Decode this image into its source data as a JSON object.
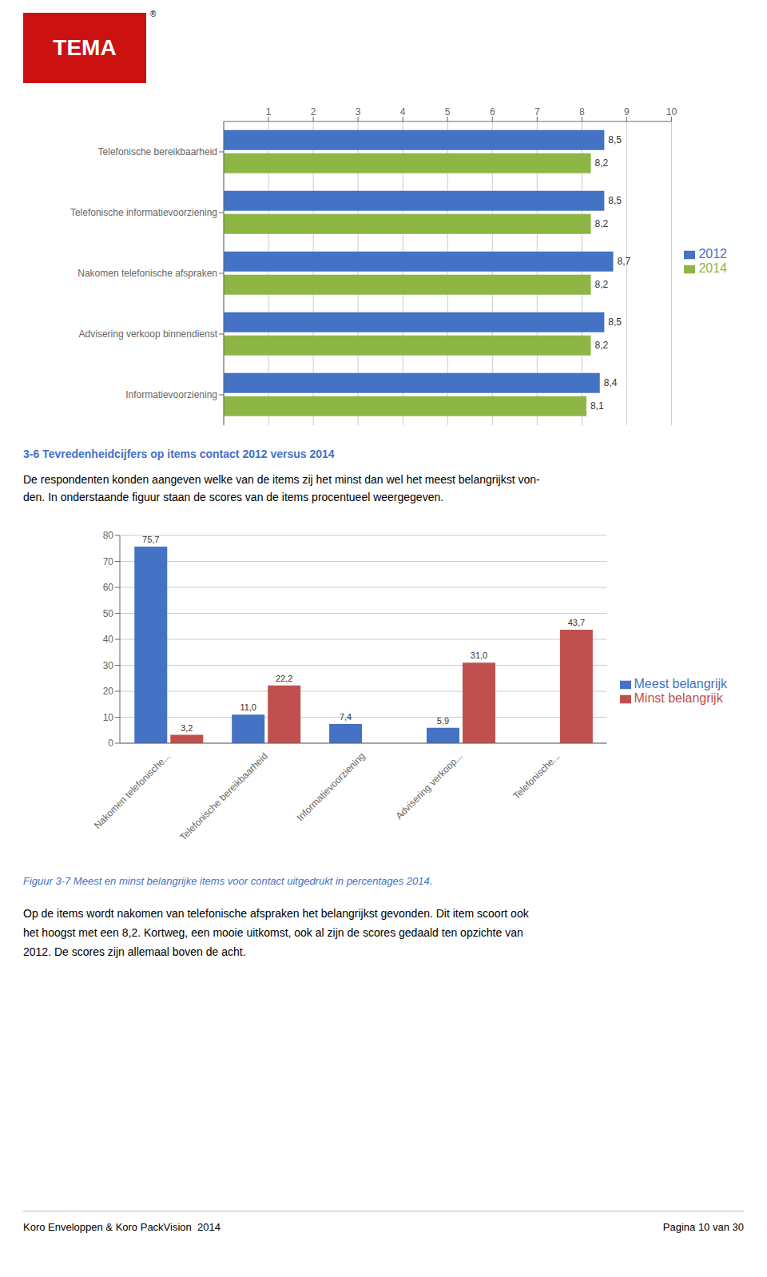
{
  "logo": "TEMA",
  "logo_color": "#CC1111",
  "registered_mark": "®",
  "section_title": "3-6 Tevredenheidcijfers op items contact 2012 versus 2014",
  "section_title_color": "#4472C4",
  "section_text": [
    "De respondenten konden aangeven welke van de items zij het minst dan wel het meest belangrijkst von-",
    "den. In onderstaande figuur staan de scores van de items procentueel weergegeven."
  ],
  "figure_caption": "Figuur 3-7 Meest en minst belangrijke items voor contact uitgedrukt in percentages 2014.",
  "figure_caption_color": "#4472C4",
  "body_text": [
    "Op de items wordt nakomen van telefonische afspraken het belangrijkst gevonden. Dit item scoort ook",
    "het hoogst met een 8,2. Kortweg, een mooie uitkomst, ook al zijn de scores gedaald ten opzichte van",
    "2012. De scores zijn allemaal boven de acht."
  ],
  "footer_left": "Koro Enveloppen & Koro PackVision  2014",
  "footer_right": "Pagina 10 van 30",
  "chart_data": [
    {
      "type": "bar",
      "orientation": "horizontal",
      "categories": [
        "Informatievoorziening",
        "Advisering verkoop binnendienst",
        "Nakomen telefonische afspraken",
        "Telefonische informatievoorziening",
        "Telefonische bereikbaarheid"
      ],
      "series": [
        {
          "name": "2012",
          "color": "#4472C4",
          "values": [
            8.4,
            8.5,
            8.7,
            8.5,
            8.5
          ],
          "value_labels": [
            "8,4",
            "8,5",
            "8,7",
            "8,5",
            "8,5"
          ]
        },
        {
          "name": "2014",
          "color": "#8DB645",
          "values": [
            8.1,
            8.2,
            8.2,
            8.2,
            8.2
          ],
          "value_labels": [
            "8,1",
            "8,2",
            "8,2",
            "8,2",
            "8,2"
          ]
        }
      ],
      "xlim": [
        0,
        10
      ],
      "xticks": [
        1,
        2,
        3,
        4,
        5,
        6,
        7,
        8,
        9,
        10
      ],
      "grid": true,
      "legend": "right",
      "data_labels": true
    },
    {
      "type": "bar",
      "categories": [
        "Nakomen telefonische...",
        "Telefonische bereikbaarheid",
        "Informatievoorziening",
        "Advisering verkoop...",
        "Telefonische..."
      ],
      "series": [
        {
          "name": "Meest belangrijk",
          "color": "#4472C4",
          "values": [
            75.7,
            11.0,
            7.4,
            5.9,
            0.0
          ],
          "value_labels": [
            "75,7",
            "11,0",
            "7,4",
            "5,9",
            null
          ]
        },
        {
          "name": "Minst belangrijk",
          "color": "#C0504D",
          "values": [
            3.2,
            22.2,
            0.0,
            31.0,
            43.7
          ],
          "value_labels": [
            "3,2",
            "22,2",
            null,
            "31,0",
            "43,7"
          ]
        }
      ],
      "ylim": [
        0,
        80
      ],
      "yticks": [
        0,
        10,
        20,
        30,
        40,
        50,
        60,
        70,
        80
      ],
      "grid": true,
      "legend": "right",
      "data_labels": true
    }
  ]
}
